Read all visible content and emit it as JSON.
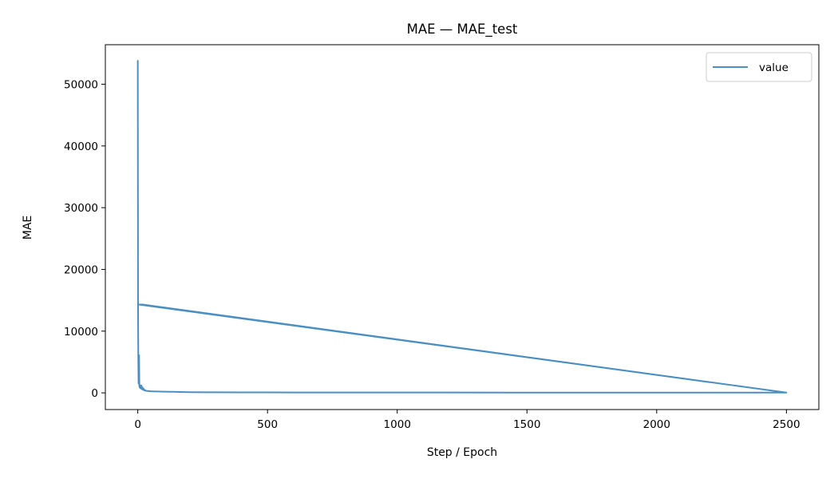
{
  "chart_data": {
    "type": "line",
    "title": "MAE — MAE_test",
    "xlabel": "Step / Epoch",
    "ylabel": "MAE",
    "xlim": [
      -125,
      2625
    ],
    "ylim": [
      -2700,
      56400
    ],
    "x_ticks": [
      0,
      500,
      1000,
      1500,
      2000,
      2500
    ],
    "y_ticks": [
      0,
      10000,
      20000,
      30000,
      40000,
      50000
    ],
    "grid": false,
    "legend": {
      "position": "top-right",
      "entries": [
        "value"
      ]
    },
    "series": [
      {
        "name": "value",
        "color": "#4a8ec2",
        "x": [
          0,
          1,
          2,
          3,
          4,
          5,
          6,
          7,
          8,
          9,
          10,
          12,
          14,
          16,
          18,
          20,
          22,
          25,
          28,
          30,
          35,
          40,
          45,
          50,
          60,
          70,
          80,
          90,
          100,
          110,
          120,
          130,
          140,
          150,
          160,
          180,
          200,
          250,
          300,
          400,
          500,
          600,
          800,
          1000,
          1200,
          1500,
          1800,
          2000,
          2200,
          2400,
          2499,
          2500,
          5,
          6,
          8,
          10,
          15,
          20,
          2500
        ],
        "y": [
          53800,
          14300,
          5500,
          1500,
          4200,
          6100,
          1200,
          900,
          1300,
          800,
          1100,
          700,
          1200,
          600,
          900,
          500,
          700,
          400,
          450,
          350,
          320,
          300,
          280,
          260,
          250,
          230,
          220,
          210,
          200,
          190,
          180,
          170,
          180,
          160,
          150,
          130,
          120,
          100,
          90,
          80,
          75,
          70,
          65,
          60,
          58,
          55,
          52,
          50,
          48,
          47,
          46,
          45,
          14300,
          14300,
          14300,
          14300,
          14300,
          14300,
          45
        ]
      }
    ]
  }
}
